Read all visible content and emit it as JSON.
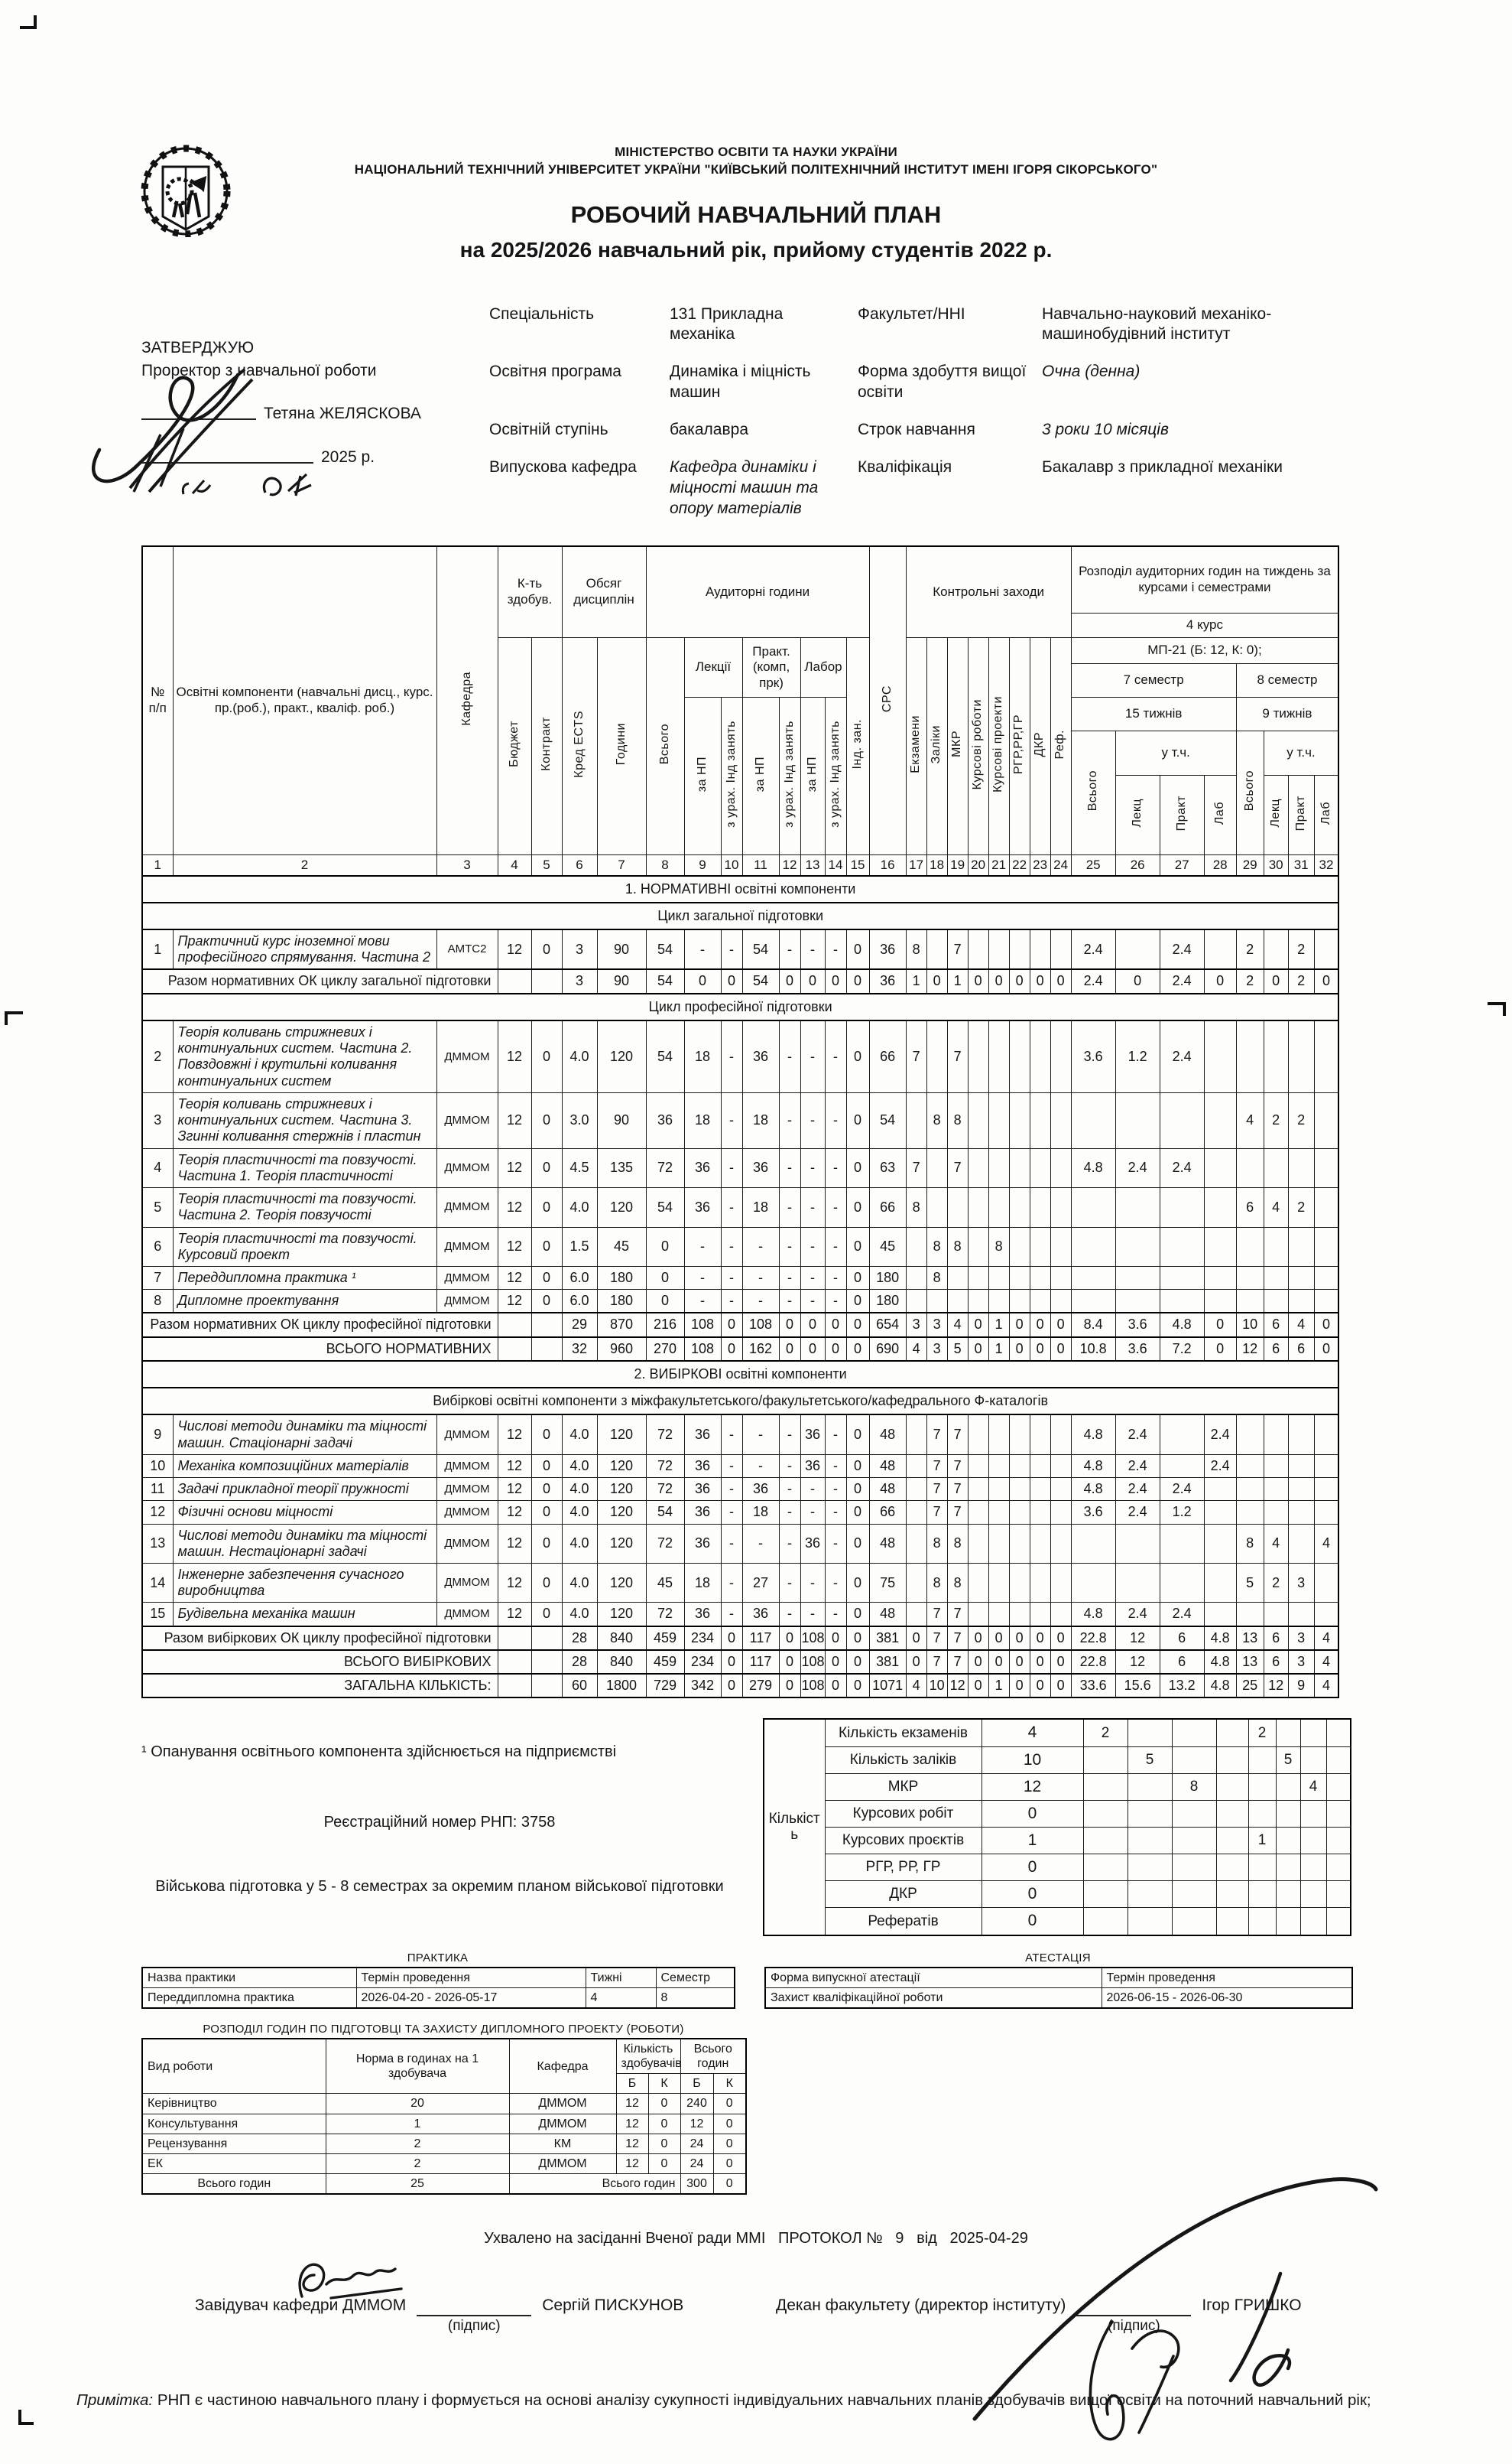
{
  "header": {
    "ministry": "МІНІСТЕРСТВО ОСВІТИ ТА НАУКИ УКРАЇНИ",
    "university": "НАЦІОНАЛЬНИЙ ТЕХНІЧНИЙ УНІВЕРСИТЕТ УКРАЇНИ \"КИЇВСЬКИЙ ПОЛІТЕХНІЧНИЙ ІНСТИТУТ ІМЕНІ ІГОРЯ СІКОРСЬКОГО\"",
    "title": "РОБОЧИЙ НАВЧАЛЬНИЙ ПЛАН",
    "subtitle": "на 2025/2026 навчальний рік, прийому студентів 2022 р."
  },
  "approval": {
    "approve": "ЗАТВЕРДЖУЮ",
    "role": "Проректор з навчальної роботи",
    "name": "Тетяна ЖЕЛЯСКОВА",
    "year": "2025 р."
  },
  "info": {
    "rows": [
      {
        "l1": "Спеціальність",
        "v1": "131 Прикладна механіка",
        "l2": "Факультет/ННІ",
        "v2": "Навчально-науковий механіко-машинобудівний інститут"
      },
      {
        "l1": "Освітня програма",
        "v1": "Динаміка і міцність машин",
        "l2": "Форма здобуття вищої освіти",
        "v2": "Очна (денна)"
      },
      {
        "l1": "Освітній ступінь",
        "v1": "бакалавра",
        "l2": "Строк навчання",
        "v2": "3 роки 10 місяців"
      },
      {
        "l1": "Випускова кафедра",
        "v1": "Кафедра динаміки і міцності машин та опору матеріалів",
        "l2": "Кваліфікація",
        "v2": "Бакалавр з прикладної механіки"
      }
    ]
  },
  "table": {
    "header": {
      "num": "№ п/п",
      "components": "Освітні компоненти (навчальні дисц., курс. пр.(роб.), практ., кваліф. роб.)",
      "kafedra": "Кафедра",
      "kt": "К-ть здобув.",
      "budget": "Бюджет",
      "contract": "Контракт",
      "obsyag": "Обсяг дисциплін",
      "kred": "Кред ECTS",
      "godyny": "Години",
      "aud": "Аудиторні години",
      "vsogo": "Всього",
      "lekcii": "Лекції",
      "za_np": "за НП",
      "z_urah": "з урах. Інд занять",
      "prakt": "Практ. (комп, прк)",
      "labor": "Лабор",
      "ind_zan": "Інд. зан.",
      "srs": "СРС",
      "kontrol": "Контрольні заходи",
      "ekzameny": "Екзамени",
      "zaliky": "Заліки",
      "mkr": "МКР",
      "kursovi_roboty": "Курсові роботи",
      "kursovi_proekty": "Курсові проекти",
      "rgr": "РГР,РР,ГР",
      "dkr": "ДКР",
      "ref": "Реф.",
      "rozpodil": "Розподіл аудиторних годин на тиждень за курсами і семестрами",
      "kurs": "4 курс",
      "group": "МП-21 (Б: 12, К: 0);",
      "sem7": "7 семестр",
      "sem8": "8 семестр",
      "weeks7": "15 тижнів",
      "weeks9": "9 тижнів",
      "utch": "у т.ч.",
      "lekc": "Лекц",
      "prakt_s": "Практ",
      "lab_s": "Лаб"
    },
    "col_numbers": [
      "1",
      "2",
      "3",
      "4",
      "5",
      "6",
      "7",
      "8",
      "9",
      "10",
      "11",
      "12",
      "13",
      "14",
      "15",
      "16",
      "17",
      "18",
      "19",
      "20",
      "21",
      "22",
      "23",
      "24",
      "25",
      "26",
      "27",
      "28",
      "29",
      "30",
      "31",
      "32"
    ],
    "rows": [
      {
        "t": "section",
        "label": "1. НОРМАТИВНІ освітні компоненти"
      },
      {
        "t": "sub",
        "label": "Цикл загальної підготовки"
      },
      {
        "t": "course",
        "n": "1",
        "name": "Практичний курс іноземної мови професійного спрямування. Частина 2",
        "dept": "АМТС2",
        "v": [
          "12",
          "0",
          "3",
          "90",
          "54",
          "-",
          "-",
          "54",
          "-",
          "-",
          "-",
          "0",
          "36",
          "8",
          "",
          "7",
          "",
          "",
          "",
          "",
          "",
          "2.4",
          "",
          "2.4",
          "",
          "2",
          "",
          "2",
          ""
        ]
      },
      {
        "t": "total",
        "label": "Разом нормативних ОК циклу загальної підготовки",
        "v": [
          "3",
          "90",
          "54",
          "0",
          "0",
          "54",
          "0",
          "0",
          "0",
          "0",
          "36",
          "1",
          "0",
          "1",
          "0",
          "0",
          "0",
          "0",
          "0",
          "2.4",
          "0",
          "2.4",
          "0",
          "2",
          "0",
          "2",
          "0"
        ]
      },
      {
        "t": "sub",
        "label": "Цикл професійної підготовки"
      },
      {
        "t": "course",
        "n": "2",
        "name": "Теорія коливань стрижневих і континуальних систем. Частина 2. Повздовжні і крутильні коливання континуальних систем",
        "dept": "ДММОМ",
        "v": [
          "12",
          "0",
          "4.0",
          "120",
          "54",
          "18",
          "-",
          "36",
          "-",
          "-",
          "-",
          "0",
          "66",
          "7",
          "",
          "7",
          "",
          "",
          "",
          "",
          "",
          "3.6",
          "1.2",
          "2.4",
          "",
          "",
          "",
          "",
          ""
        ]
      },
      {
        "t": "course",
        "n": "3",
        "name": "Теорія коливань стрижневих і континуальних систем. Частина 3. Згинні коливання стержнів і пластин",
        "dept": "ДММОМ",
        "v": [
          "12",
          "0",
          "3.0",
          "90",
          "36",
          "18",
          "-",
          "18",
          "-",
          "-",
          "-",
          "0",
          "54",
          "",
          "8",
          "8",
          "",
          "",
          "",
          "",
          "",
          "",
          "",
          "",
          "",
          "4",
          "2",
          "2",
          ""
        ]
      },
      {
        "t": "course",
        "n": "4",
        "name": "Теорія пластичності та повзучості. Частина 1. Теорія пластичності",
        "dept": "ДММОМ",
        "v": [
          "12",
          "0",
          "4.5",
          "135",
          "72",
          "36",
          "-",
          "36",
          "-",
          "-",
          "-",
          "0",
          "63",
          "7",
          "",
          "7",
          "",
          "",
          "",
          "",
          "",
          "4.8",
          "2.4",
          "2.4",
          "",
          "",
          "",
          "",
          ""
        ]
      },
      {
        "t": "course",
        "n": "5",
        "name": "Теорія пластичності та повзучості. Частина 2. Теорія повзучості",
        "dept": "ДММОМ",
        "v": [
          "12",
          "0",
          "4.0",
          "120",
          "54",
          "36",
          "-",
          "18",
          "-",
          "-",
          "-",
          "0",
          "66",
          "8",
          "",
          "",
          "",
          "",
          "",
          "",
          "",
          "",
          "",
          "",
          "",
          "6",
          "4",
          "2",
          ""
        ]
      },
      {
        "t": "course",
        "n": "6",
        "name": "Теорія пластичності та повзучості. Курсовий проект",
        "dept": "ДММОМ",
        "v": [
          "12",
          "0",
          "1.5",
          "45",
          "0",
          "-",
          "-",
          "-",
          "-",
          "-",
          "-",
          "0",
          "45",
          "",
          "8",
          "8",
          "",
          "8",
          "",
          "",
          "",
          "",
          "",
          "",
          "",
          "",
          "",
          "",
          ""
        ]
      },
      {
        "t": "course",
        "n": "7",
        "name": "Переддипломна практика ¹",
        "dept": "ДММОМ",
        "v": [
          "12",
          "0",
          "6.0",
          "180",
          "0",
          "-",
          "-",
          "-",
          "-",
          "-",
          "-",
          "0",
          "180",
          "",
          "8",
          "",
          "",
          "",
          "",
          "",
          "",
          "",
          "",
          "",
          "",
          "",
          "",
          "",
          ""
        ]
      },
      {
        "t": "course",
        "n": "8",
        "name": "Дипломне проектування",
        "dept": "ДММОМ",
        "v": [
          "12",
          "0",
          "6.0",
          "180",
          "0",
          "-",
          "-",
          "-",
          "-",
          "-",
          "-",
          "0",
          "180",
          "",
          "",
          "",
          "",
          "",
          "",
          "",
          "",
          "",
          "",
          "",
          "",
          "",
          "",
          "",
          ""
        ]
      },
      {
        "t": "total",
        "label": "Разом нормативних ОК циклу професійної підготовки",
        "v": [
          "29",
          "870",
          "216",
          "108",
          "0",
          "108",
          "0",
          "0",
          "0",
          "0",
          "654",
          "3",
          "3",
          "4",
          "0",
          "1",
          "0",
          "0",
          "0",
          "8.4",
          "3.6",
          "4.8",
          "0",
          "10",
          "6",
          "4",
          "0"
        ]
      },
      {
        "t": "total",
        "label": "ВСЬОГО НОРМАТИВНИХ",
        "v": [
          "32",
          "960",
          "270",
          "108",
          "0",
          "162",
          "0",
          "0",
          "0",
          "0",
          "690",
          "4",
          "3",
          "5",
          "0",
          "1",
          "0",
          "0",
          "0",
          "10.8",
          "3.6",
          "7.2",
          "0",
          "12",
          "6",
          "6",
          "0"
        ]
      },
      {
        "t": "section",
        "label": "2. ВИБІРКОВІ освітні компоненти"
      },
      {
        "t": "sub",
        "label": "Вибіркові освітні компоненти з міжфакультетського/факультетського/кафедрального Ф-каталогів"
      },
      {
        "t": "course",
        "n": "9",
        "name": "Числові методи динаміки та міцності машин. Стаціонарні задачі",
        "dept": "ДММОМ",
        "v": [
          "12",
          "0",
          "4.0",
          "120",
          "72",
          "36",
          "-",
          "-",
          "-",
          "36",
          "-",
          "0",
          "48",
          "",
          "7",
          "7",
          "",
          "",
          "",
          "",
          "",
          "4.8",
          "2.4",
          "",
          "2.4",
          "",
          "",
          "",
          ""
        ]
      },
      {
        "t": "course",
        "n": "10",
        "name": "Механіка композиційних матеріалів",
        "dept": "ДММОМ",
        "v": [
          "12",
          "0",
          "4.0",
          "120",
          "72",
          "36",
          "-",
          "-",
          "-",
          "36",
          "-",
          "0",
          "48",
          "",
          "7",
          "7",
          "",
          "",
          "",
          "",
          "",
          "4.8",
          "2.4",
          "",
          "2.4",
          "",
          "",
          "",
          ""
        ]
      },
      {
        "t": "course",
        "n": "11",
        "name": "Задачі прикладної теорії пружності",
        "dept": "ДММОМ",
        "v": [
          "12",
          "0",
          "4.0",
          "120",
          "72",
          "36",
          "-",
          "36",
          "-",
          "-",
          "-",
          "0",
          "48",
          "",
          "7",
          "7",
          "",
          "",
          "",
          "",
          "",
          "4.8",
          "2.4",
          "2.4",
          "",
          "",
          "",
          "",
          ""
        ]
      },
      {
        "t": "course",
        "n": "12",
        "name": "Фізичні основи міцності",
        "dept": "ДММОМ",
        "v": [
          "12",
          "0",
          "4.0",
          "120",
          "54",
          "36",
          "-",
          "18",
          "-",
          "-",
          "-",
          "0",
          "66",
          "",
          "7",
          "7",
          "",
          "",
          "",
          "",
          "",
          "3.6",
          "2.4",
          "1.2",
          "",
          "",
          "",
          "",
          ""
        ]
      },
      {
        "t": "course",
        "n": "13",
        "name": "Числові методи динаміки та міцності машин. Нестаціонарні задачі",
        "dept": "ДММОМ",
        "v": [
          "12",
          "0",
          "4.0",
          "120",
          "72",
          "36",
          "-",
          "-",
          "-",
          "36",
          "-",
          "0",
          "48",
          "",
          "8",
          "8",
          "",
          "",
          "",
          "",
          "",
          "",
          "",
          "",
          "",
          "8",
          "4",
          "",
          "4"
        ]
      },
      {
        "t": "course",
        "n": "14",
        "name": "Інженерне забезпечення сучасного виробництва",
        "dept": "ДММОМ",
        "v": [
          "12",
          "0",
          "4.0",
          "120",
          "45",
          "18",
          "-",
          "27",
          "-",
          "-",
          "-",
          "0",
          "75",
          "",
          "8",
          "8",
          "",
          "",
          "",
          "",
          "",
          "",
          "",
          "",
          "",
          "5",
          "2",
          "3",
          ""
        ]
      },
      {
        "t": "course",
        "n": "15",
        "name": "Будівельна механіка машин",
        "dept": "ДММОМ",
        "v": [
          "12",
          "0",
          "4.0",
          "120",
          "72",
          "36",
          "-",
          "36",
          "-",
          "-",
          "-",
          "0",
          "48",
          "",
          "7",
          "7",
          "",
          "",
          "",
          "",
          "",
          "4.8",
          "2.4",
          "2.4",
          "",
          "",
          "",
          "",
          ""
        ]
      },
      {
        "t": "total",
        "label": "Разом вибіркових ОК циклу професійної підготовки",
        "v": [
          "28",
          "840",
          "459",
          "234",
          "0",
          "117",
          "0",
          "108",
          "0",
          "0",
          "381",
          "0",
          "7",
          "7",
          "0",
          "0",
          "0",
          "0",
          "0",
          "22.8",
          "12",
          "6",
          "4.8",
          "13",
          "6",
          "3",
          "4"
        ]
      },
      {
        "t": "total",
        "label": "ВСЬОГО ВИБІРКОВИХ",
        "v": [
          "28",
          "840",
          "459",
          "234",
          "0",
          "117",
          "0",
          "108",
          "0",
          "0",
          "381",
          "0",
          "7",
          "7",
          "0",
          "0",
          "0",
          "0",
          "0",
          "22.8",
          "12",
          "6",
          "4.8",
          "13",
          "6",
          "3",
          "4"
        ]
      },
      {
        "t": "total",
        "label": "ЗАГАЛЬНА КІЛЬКІСТЬ:",
        "v": [
          "60",
          "1800",
          "729",
          "342",
          "0",
          "279",
          "0",
          "108",
          "0",
          "0",
          "1071",
          "4",
          "10",
          "12",
          "0",
          "1",
          "0",
          "0",
          "0",
          "33.6",
          "15.6",
          "13.2",
          "4.8",
          "25",
          "12",
          "9",
          "4"
        ]
      }
    ]
  },
  "notes": {
    "footnote": "¹ Опанування освітнього компонента здійснюється на підприємстві",
    "reg": "Реєстраційний номер РНП: 3758",
    "military": "Військова підготовка у 5 - 8 семестрах за окремим планом військової підготовки"
  },
  "kilkist": {
    "side_label": "Кількість",
    "rows": [
      {
        "label": "Кількість екзаменів",
        "total": "4",
        "sem": [
          "2",
          "",
          "",
          "",
          "2",
          "",
          "",
          ""
        ]
      },
      {
        "label": "Кількість заліків",
        "total": "10",
        "sem": [
          "",
          "5",
          "",
          "",
          "",
          "5",
          "",
          ""
        ]
      },
      {
        "label": "МКР",
        "total": "12",
        "sem": [
          "",
          "",
          "8",
          "",
          "",
          "",
          "4",
          ""
        ]
      },
      {
        "label": "Курсових робіт",
        "total": "0",
        "sem": [
          "",
          "",
          "",
          "",
          "",
          "",
          "",
          ""
        ]
      },
      {
        "label": "Курсових проєктів",
        "total": "1",
        "sem": [
          "",
          "",
          "",
          "",
          "1",
          "",
          "",
          ""
        ]
      },
      {
        "label": "РГР, РР, ГР",
        "total": "0",
        "sem": [
          "",
          "",
          "",
          "",
          "",
          "",
          "",
          ""
        ]
      },
      {
        "label": "ДКР",
        "total": "0",
        "sem": [
          "",
          "",
          "",
          "",
          "",
          "",
          "",
          ""
        ]
      },
      {
        "label": "Рефератів",
        "total": "0",
        "sem": [
          "",
          "",
          "",
          "",
          "",
          "",
          "",
          ""
        ]
      }
    ]
  },
  "practice": {
    "title": "ПРАКТИКА",
    "headers": [
      "Назва практики",
      "Термін проведення",
      "Тижні",
      "Семестр"
    ],
    "rows": [
      [
        "Переддипломна практика",
        "2026-04-20  -  2026-05-17",
        "4",
        "8"
      ]
    ]
  },
  "attestation": {
    "title": "АТЕСТАЦІЯ",
    "headers": [
      "Форма випускної атестації",
      "Термін проведення"
    ],
    "rows": [
      [
        "Захист кваліфікаційної роботи",
        "2026-06-15  -  2026-06-30"
      ]
    ]
  },
  "diploma": {
    "title": "РОЗПОДІЛ ГОДИН ПО ПІДГОТОВЦІ ТА ЗАХИСТУ ДИПЛОМНОГО ПРОЕКТУ (РОБОТИ)",
    "col_vyd": "Вид роботи",
    "col_norma": "Норма в годинах на 1 здобувача",
    "col_kaf": "Кафедра",
    "col_kilkist": "Кількість здобувачів",
    "col_vsogo": "Всього годин",
    "col_b": "Б",
    "col_k": "К",
    "rows": [
      [
        "Керівництво",
        "20",
        "ДММОМ",
        "12",
        "0",
        "240",
        "0"
      ],
      [
        "Консультування",
        "1",
        "ДММОМ",
        "12",
        "0",
        "12",
        "0"
      ],
      [
        "Рецензування",
        "2",
        "КМ",
        "12",
        "0",
        "24",
        "0"
      ],
      [
        "ЕК",
        "2",
        "ДММОМ",
        "12",
        "0",
        "24",
        "0"
      ]
    ],
    "total": {
      "label": "Всього годин",
      "norma": "25",
      "label2": "Всього годин",
      "b": "300",
      "k": "0"
    }
  },
  "footer": {
    "approved": "Ухвалено на засіданні Вченої ради ММІ   ПРОТОКОЛ №   9   від   2025-04-29",
    "signatories": [
      {
        "role": "Завідувач кафедри ДММОМ",
        "sub": "(підпис)",
        "name": "Сергій ПИСКУНОВ"
      },
      {
        "role": "Декан факультету (директор інституту)",
        "sub": "(підпис)",
        "name": "Ігор ГРИШКО"
      }
    ],
    "note_label": "Примітка:",
    "note_text": " РНП є частиною навчального плану і формується на основі аналізу сукупності індивідуальних навчальних планів здобувачів вищої освіти на поточний навчальний рік;"
  }
}
